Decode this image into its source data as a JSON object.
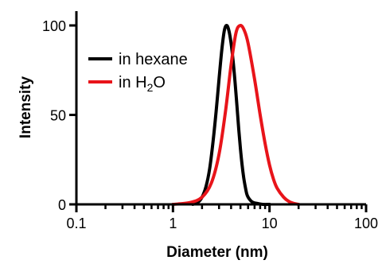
{
  "chart_data": {
    "type": "line",
    "xlabel": "Diameter (nm)",
    "ylabel": "Intensity",
    "xscale": "log",
    "xlim": [
      0.1,
      100
    ],
    "ylim": [
      0,
      110
    ],
    "x_ticks": [
      0.1,
      1,
      10,
      100
    ],
    "x_tick_labels": [
      "0.1",
      "1",
      "10",
      "100"
    ],
    "y_ticks": [
      0,
      50,
      100
    ],
    "y_tick_labels": [
      "0",
      "50",
      "100"
    ],
    "grid": false,
    "legend_position": "top-left",
    "series": [
      {
        "name": "in hexane",
        "color": "#000000",
        "x": [
          1.6,
          1.8,
          2.0,
          2.2,
          2.4,
          2.6,
          2.8,
          3.0,
          3.2,
          3.4,
          3.6,
          3.8,
          4.0,
          4.2,
          4.4,
          4.6,
          4.8,
          5.0,
          5.2,
          5.4,
          5.6,
          5.8,
          6.0,
          6.4,
          6.8,
          7.5,
          8.5,
          10.0
        ],
        "values": [
          0,
          1,
          4,
          10,
          20,
          35,
          52,
          70,
          86,
          97,
          100,
          97,
          90,
          80,
          68,
          55,
          42,
          31,
          22,
          15,
          10,
          6,
          4,
          2,
          1,
          0.5,
          0,
          0
        ]
      },
      {
        "name": "in H2O",
        "name_parts": [
          "in H",
          "2",
          "O"
        ],
        "color": "#e8141a",
        "x": [
          1.0,
          1.5,
          2.0,
          2.5,
          3.0,
          3.5,
          4.0,
          4.5,
          5.0,
          5.5,
          6.0,
          7.0,
          8.0,
          9.0,
          10.0,
          11.0,
          12.0,
          14.0,
          16.0,
          18.0,
          20.0
        ],
        "values": [
          0,
          1,
          4,
          12,
          28,
          52,
          78,
          96,
          100,
          97,
          90,
          70,
          50,
          34,
          22,
          14,
          9,
          4,
          1.5,
          0.5,
          0
        ]
      }
    ]
  }
}
